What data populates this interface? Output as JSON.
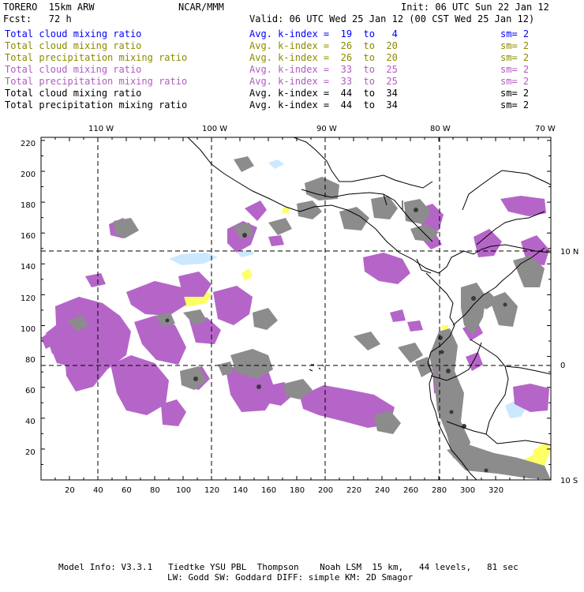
{
  "header": {
    "model": "TORERO  15km ARW",
    "org": "NCAR/MMM",
    "init": "Init: 06 UTC Sun 22 Jan 12",
    "fcst": "Fcst:   72 h",
    "valid": "Valid: 06 UTC Wed 25 Jan 12 (00 CST Wed 25 Jan 12)"
  },
  "legend": [
    {
      "field": "Total cloud mixing ratio",
      "kindex": "Avg. k-index =  19  to   4",
      "sm": "sm= 2",
      "color": "#0000ff"
    },
    {
      "field": "Total cloud mixing ratio",
      "kindex": "Avg. k-index =  26  to  20",
      "sm": "sm= 2",
      "color": "#8b8b00"
    },
    {
      "field": "Total precipitation mixing ratio",
      "kindex": "Avg. k-index =  26  to  20",
      "sm": "sm= 2",
      "color": "#8b8b00"
    },
    {
      "field": "Total cloud mixing ratio",
      "kindex": "Avg. k-index =  33  to  25",
      "sm": "sm= 2",
      "color": "#b05cc0"
    },
    {
      "field": "Total precipitation mixing ratio",
      "kindex": "Avg. k-index =  33  to  25",
      "sm": "sm= 2",
      "color": "#b05cc0"
    },
    {
      "field": "Total cloud mixing ratio",
      "kindex": "Avg. k-index =  44  to  34",
      "sm": "sm= 2",
      "color": "#000000"
    },
    {
      "field": "Total precipitation mixing ratio",
      "kindex": "Avg. k-index =  44  to  34",
      "sm": "sm= 2",
      "color": "#000000"
    }
  ],
  "map": {
    "top_lon_labels": [
      "110 W",
      "100 W",
      "90 W",
      "80 W",
      "70 W"
    ],
    "right_lat_labels": [
      "10 N",
      "0",
      "10 S"
    ],
    "y_grid_labels": [
      "220",
      "200",
      "180",
      "160",
      "140",
      "120",
      "100",
      "80",
      "60",
      "40",
      "20"
    ],
    "x_grid_labels": [
      "20",
      "40",
      "60",
      "80",
      "100",
      "120",
      "140",
      "160",
      "180",
      "200",
      "220",
      "240",
      "260",
      "280",
      "300",
      "320"
    ],
    "colors": {
      "purple": "#b565c8",
      "gray": "#8c8c8c",
      "yellow": "#ffff66",
      "lightblue": "#cce8ff",
      "coast": "#000000"
    }
  },
  "footer": {
    "line1": "Model Info: V3.3.1   Tiedtke YSU PBL  Thompson    Noah LSM  15 km,   44 levels,   81 sec",
    "line2": "LW: Godd SW: Goddard DIFF: simple KM: 2D Smagor"
  }
}
